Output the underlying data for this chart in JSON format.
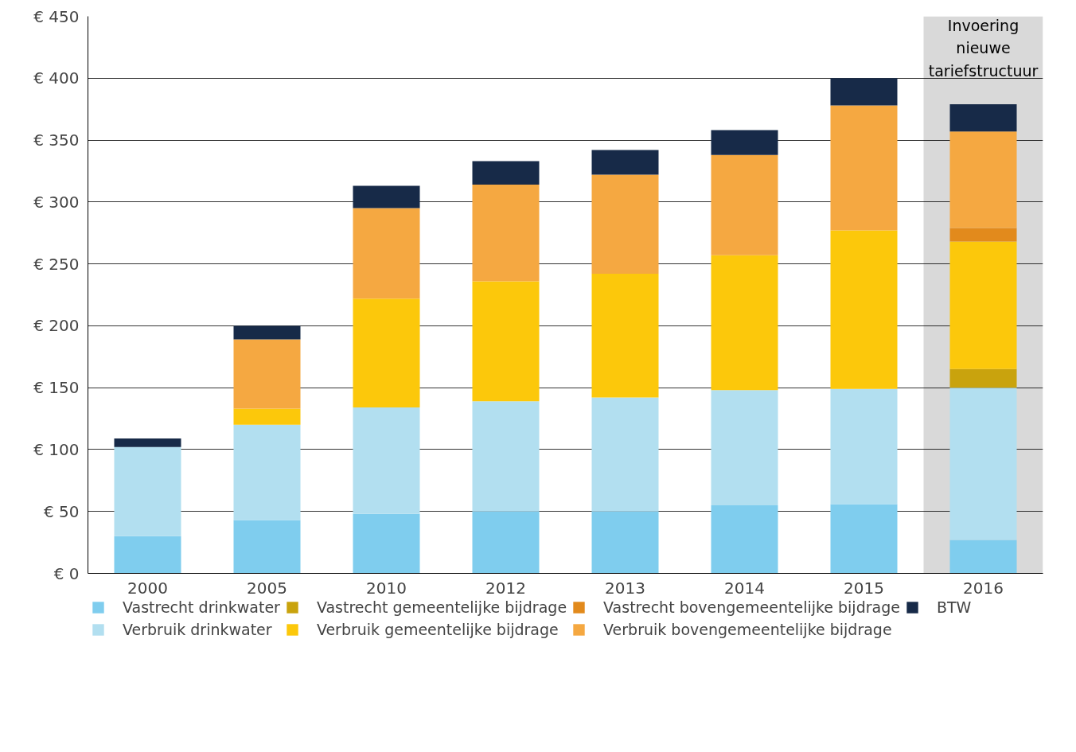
{
  "chart_data": {
    "type": "bar",
    "stacked": true,
    "categories": [
      "2000",
      "2005",
      "2010",
      "2012",
      "2013",
      "2014",
      "2015",
      "2016"
    ],
    "series": [
      {
        "name": "Vastrecht drinkwater",
        "color": "#7fcdee",
        "values": [
          30,
          43,
          48,
          50,
          50,
          55,
          56,
          27
        ]
      },
      {
        "name": "Verbruik drinkwater",
        "color": "#b2dff0",
        "values": [
          72,
          77,
          86,
          89,
          92,
          93,
          93,
          123
        ]
      },
      {
        "name": "Vastrecht gemeentelijke bijdrage",
        "color": "#c9a30d",
        "values": [
          0,
          0,
          0,
          0,
          0,
          0,
          0,
          15
        ]
      },
      {
        "name": "Verbruik gemeentelijke bijdrage",
        "color": "#fcc80b",
        "values": [
          0,
          13,
          88,
          97,
          100,
          109,
          128,
          103
        ]
      },
      {
        "name": "Vastrecht bovengemeentelijke bijdrage",
        "color": "#e28a1c",
        "values": [
          0,
          0,
          0,
          0,
          0,
          0,
          0,
          11
        ]
      },
      {
        "name": "Verbruik bovengemeentelijke bijdrage",
        "color": "#f5a841",
        "values": [
          0,
          56,
          73,
          78,
          80,
          81,
          101,
          78
        ]
      },
      {
        "name": "BTW",
        "color": "#172a48",
        "values": [
          7,
          11,
          18,
          19,
          20,
          20,
          22,
          22
        ]
      }
    ],
    "ylim": [
      0,
      450
    ],
    "yticks": [
      {
        "value": 0,
        "label": "€ 0"
      },
      {
        "value": 50,
        "label": "€ 50"
      },
      {
        "value": 100,
        "label": "€ 100"
      },
      {
        "value": 150,
        "label": "€ 150"
      },
      {
        "value": 200,
        "label": "€ 200"
      },
      {
        "value": 250,
        "label": "€ 250"
      },
      {
        "value": 300,
        "label": "€ 300"
      },
      {
        "value": 350,
        "label": "€ 350"
      },
      {
        "value": 400,
        "label": "€ 400"
      },
      {
        "value": 450,
        "label": "€ 450"
      }
    ],
    "bands": [
      {
        "axis": "x",
        "from": "2016",
        "to": "2016",
        "label": "Invoering\nnieuwe\ntariefstructuur",
        "color": "#d9d9d9"
      }
    ],
    "grid": "y",
    "legend": "bottom"
  }
}
